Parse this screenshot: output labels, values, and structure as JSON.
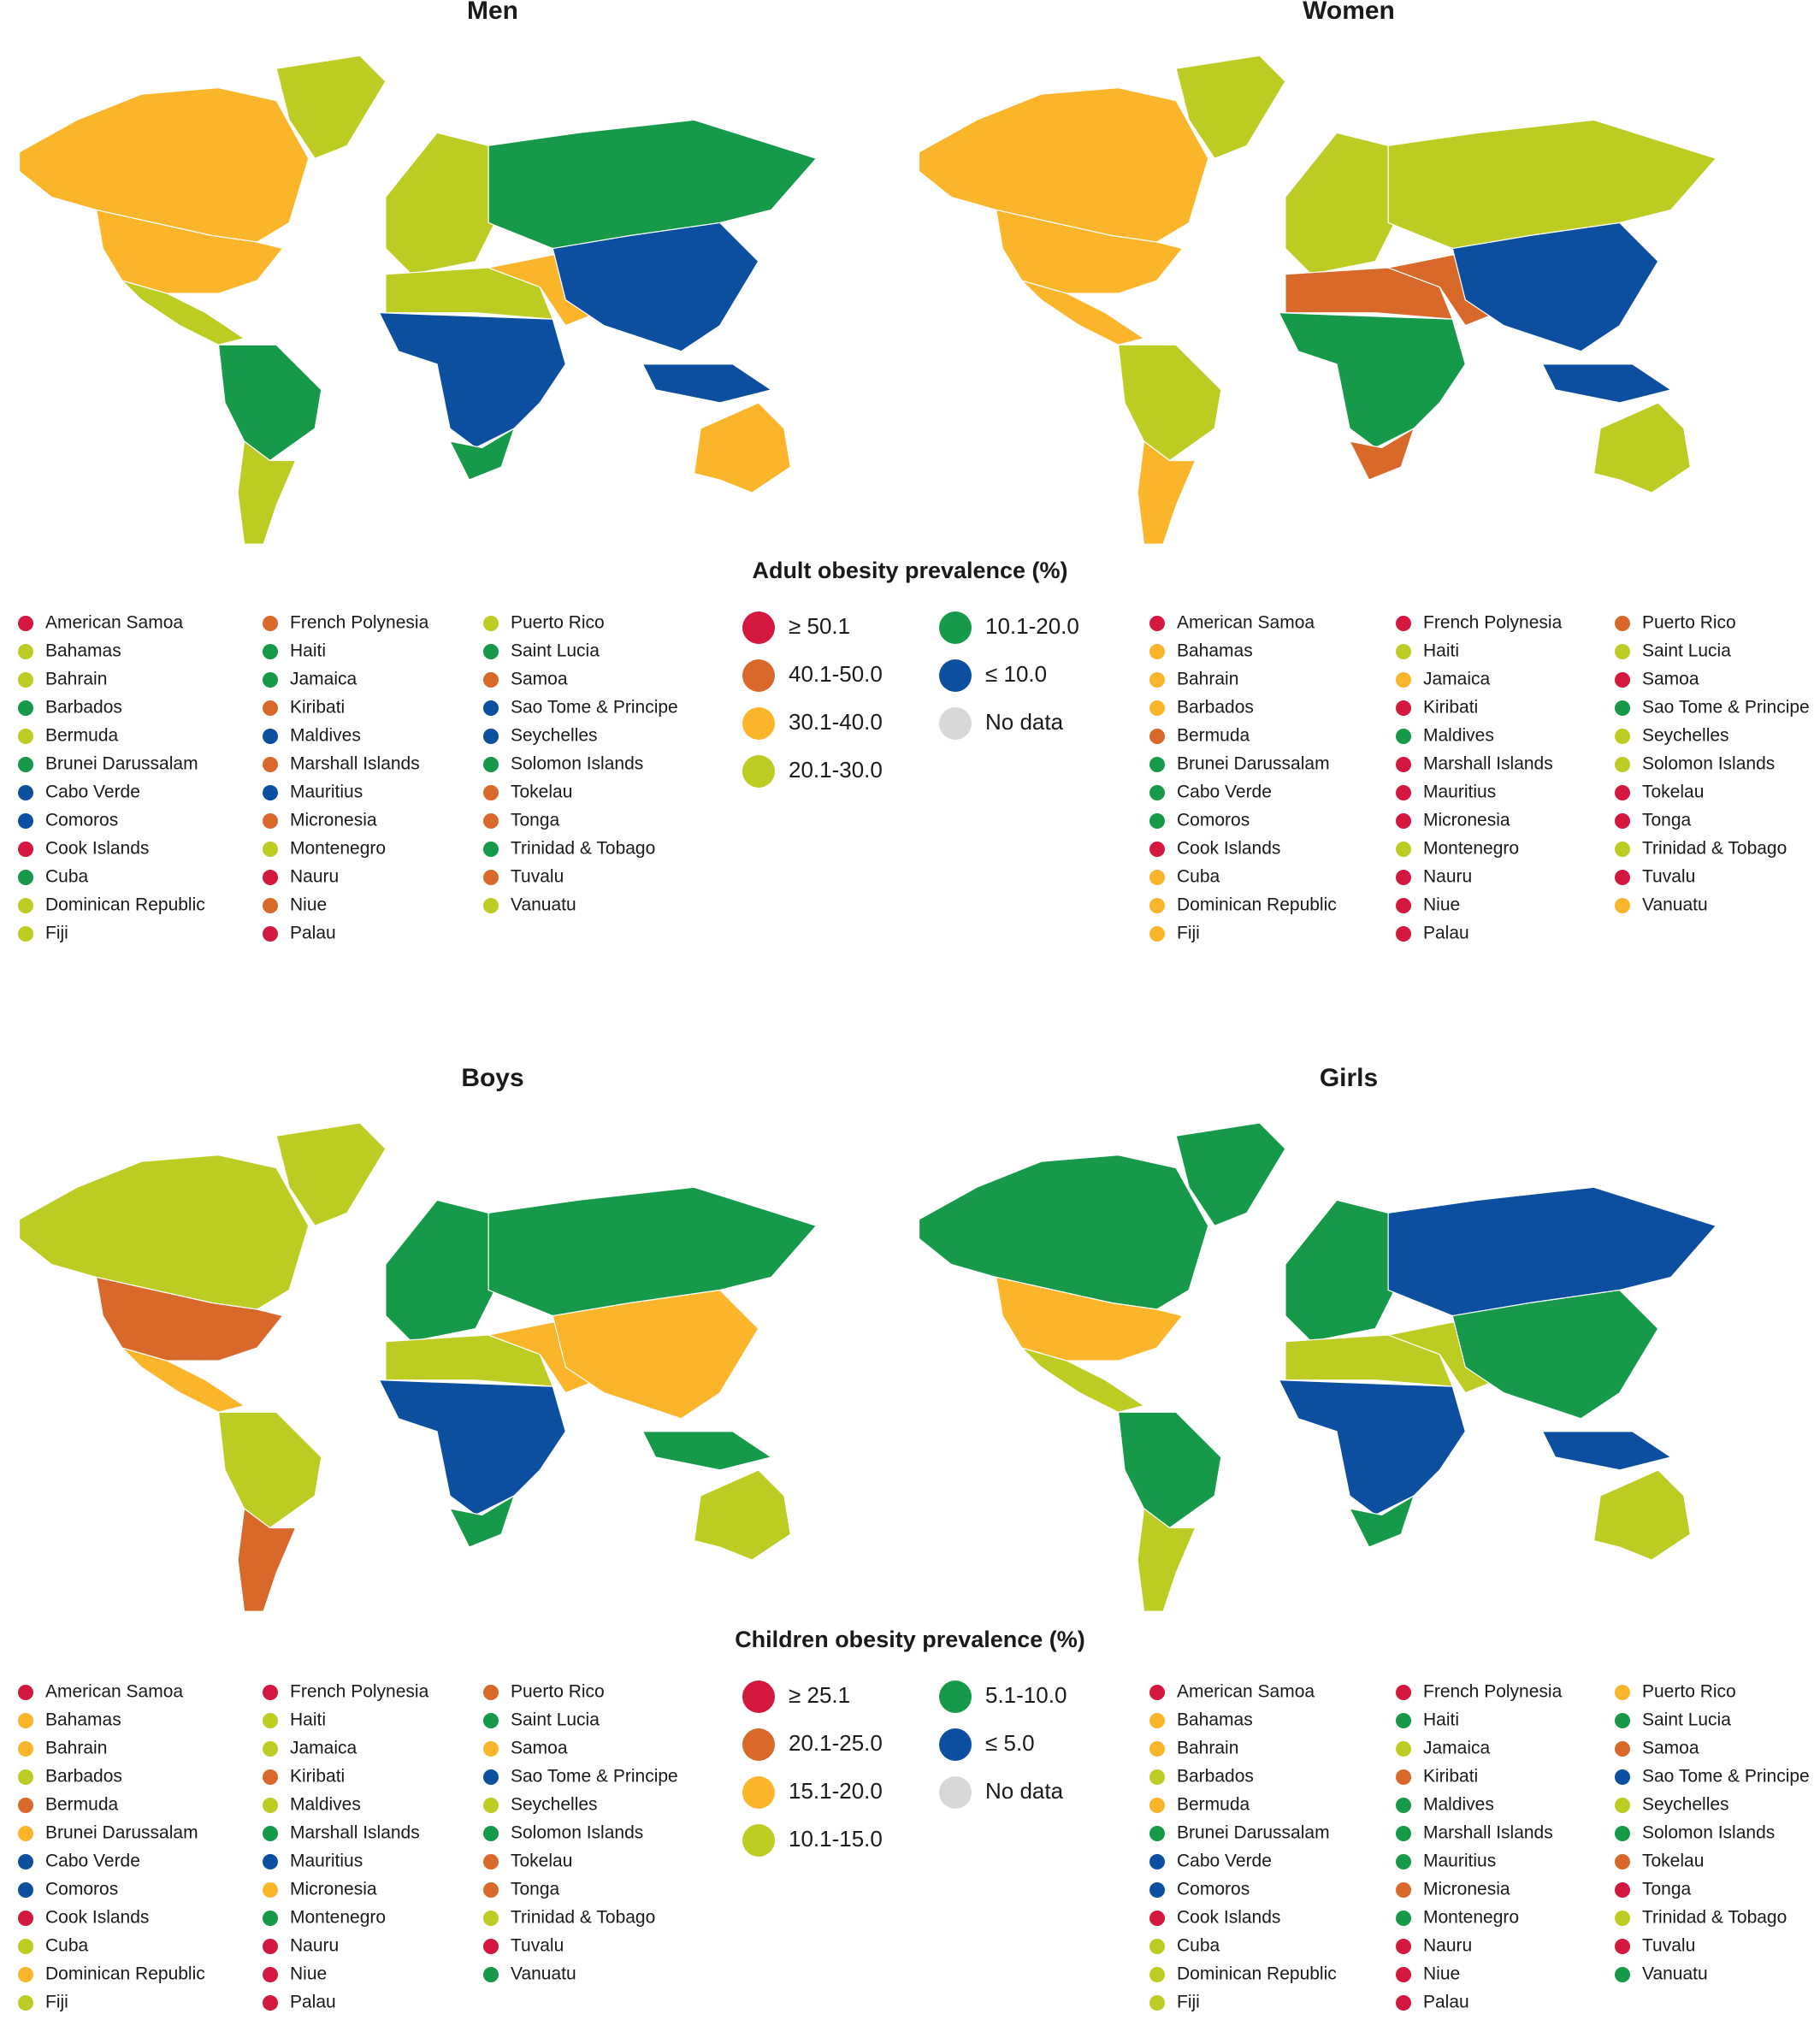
{
  "maps": [
    {
      "title": "Men",
      "region_colors": [
        "#fbb52b",
        "#fbb52b",
        "#bdcc22",
        "#bdcc22",
        "#169a49",
        "#bdcc22",
        "#bdcc22",
        "#169a49",
        "#bdcc22",
        "#0c4fa1",
        "#169a49",
        "#fbb52b",
        "#0c4fa1",
        "#fbb52b",
        "#0c4fa1"
      ]
    },
    {
      "title": "Women",
      "region_colors": [
        "#fbb52b",
        "#fbb52b",
        "#bdcc22",
        "#fbb52b",
        "#bdcc22",
        "#fbb52b",
        "#bdcc22",
        "#bdcc22",
        "#d9692a",
        "#169a49",
        "#d9692a",
        "#d9692a",
        "#0c4fa1",
        "#bdcc22",
        "#0c4fa1"
      ]
    },
    {
      "title": "Boys",
      "region_colors": [
        "#bdcc22",
        "#d9692a",
        "#bdcc22",
        "#fbb52b",
        "#bdcc22",
        "#d9692a",
        "#169a49",
        "#169a49",
        "#bdcc22",
        "#0c4fa1",
        "#169a49",
        "#fbb52b",
        "#fbb52b",
        "#bdcc22",
        "#169a49"
      ]
    },
    {
      "title": "Girls",
      "region_colors": [
        "#169a49",
        "#fbb52b",
        "#169a49",
        "#bdcc22",
        "#169a49",
        "#bdcc22",
        "#169a49",
        "#0c4fa1",
        "#bdcc22",
        "#0c4fa1",
        "#169a49",
        "#bdcc22",
        "#169a49",
        "#bdcc22",
        "#0c4fa1"
      ]
    }
  ],
  "legends": [
    {
      "title": "Adult obesity prevalence (%)",
      "classes": [
        {
          "label": "≥ 50.1",
          "color": "#d3173f"
        },
        {
          "label": "40.1-50.0",
          "color": "#d9692a"
        },
        {
          "label": "30.1-40.0",
          "color": "#fbb52b"
        },
        {
          "label": "20.1-30.0",
          "color": "#bdcc22"
        },
        {
          "label": "10.1-20.0",
          "color": "#169a49"
        },
        {
          "label": "≤ 10.0",
          "color": "#0c4fa1"
        },
        {
          "label": "No data",
          "color": "#d8d8d8"
        }
      ],
      "lists": [
        {
          "items": [
            {
              "name": "American Samoa",
              "color": "#d3173f"
            },
            {
              "name": "Bahamas",
              "color": "#bdcc22"
            },
            {
              "name": "Bahrain",
              "color": "#bdcc22"
            },
            {
              "name": "Barbados",
              "color": "#169a49"
            },
            {
              "name": "Bermuda",
              "color": "#bdcc22"
            },
            {
              "name": "Brunei Darussalam",
              "color": "#169a49"
            },
            {
              "name": "Cabo Verde",
              "color": "#0c4fa1"
            },
            {
              "name": "Comoros",
              "color": "#0c4fa1"
            },
            {
              "name": "Cook Islands",
              "color": "#d3173f"
            },
            {
              "name": "Cuba",
              "color": "#169a49"
            },
            {
              "name": "Dominican Republic",
              "color": "#bdcc22"
            },
            {
              "name": "Fiji",
              "color": "#bdcc22"
            },
            {
              "name": "French Polynesia",
              "color": "#d9692a"
            },
            {
              "name": "Haiti",
              "color": "#169a49"
            },
            {
              "name": "Jamaica",
              "color": "#169a49"
            },
            {
              "name": "Kiribati",
              "color": "#d9692a"
            },
            {
              "name": "Maldives",
              "color": "#0c4fa1"
            },
            {
              "name": "Marshall Islands",
              "color": "#d9692a"
            },
            {
              "name": "Mauritius",
              "color": "#0c4fa1"
            },
            {
              "name": "Micronesia",
              "color": "#d9692a"
            },
            {
              "name": "Montenegro",
              "color": "#bdcc22"
            },
            {
              "name": "Nauru",
              "color": "#d3173f"
            },
            {
              "name": "Niue",
              "color": "#d9692a"
            },
            {
              "name": "Palau",
              "color": "#d3173f"
            },
            {
              "name": "Puerto Rico",
              "color": "#bdcc22"
            },
            {
              "name": "Saint Lucia",
              "color": "#169a49"
            },
            {
              "name": "Samoa",
              "color": "#d9692a"
            },
            {
              "name": "Sao Tome & Principe",
              "color": "#0c4fa1"
            },
            {
              "name": "Seychelles",
              "color": "#0c4fa1"
            },
            {
              "name": "Solomon Islands",
              "color": "#169a49"
            },
            {
              "name": "Tokelau",
              "color": "#d9692a"
            },
            {
              "name": "Tonga",
              "color": "#d9692a"
            },
            {
              "name": "Trinidad & Tobago",
              "color": "#169a49"
            },
            {
              "name": "Tuvalu",
              "color": "#d9692a"
            },
            {
              "name": "Vanuatu",
              "color": "#bdcc22"
            }
          ]
        },
        {
          "items": [
            {
              "name": "American Samoa",
              "color": "#d3173f"
            },
            {
              "name": "Bahamas",
              "color": "#fbb52b"
            },
            {
              "name": "Bahrain",
              "color": "#fbb52b"
            },
            {
              "name": "Barbados",
              "color": "#fbb52b"
            },
            {
              "name": "Bermuda",
              "color": "#d9692a"
            },
            {
              "name": "Brunei Darussalam",
              "color": "#169a49"
            },
            {
              "name": "Cabo Verde",
              "color": "#169a49"
            },
            {
              "name": "Comoros",
              "color": "#169a49"
            },
            {
              "name": "Cook Islands",
              "color": "#d3173f"
            },
            {
              "name": "Cuba",
              "color": "#fbb52b"
            },
            {
              "name": "Dominican Republic",
              "color": "#fbb52b"
            },
            {
              "name": "Fiji",
              "color": "#fbb52b"
            },
            {
              "name": "French Polynesia",
              "color": "#d3173f"
            },
            {
              "name": "Haiti",
              "color": "#bdcc22"
            },
            {
              "name": "Jamaica",
              "color": "#fbb52b"
            },
            {
              "name": "Kiribati",
              "color": "#d3173f"
            },
            {
              "name": "Maldives",
              "color": "#169a49"
            },
            {
              "name": "Marshall Islands",
              "color": "#d3173f"
            },
            {
              "name": "Mauritius",
              "color": "#d3173f"
            },
            {
              "name": "Micronesia",
              "color": "#d3173f"
            },
            {
              "name": "Montenegro",
              "color": "#bdcc22"
            },
            {
              "name": "Nauru",
              "color": "#d3173f"
            },
            {
              "name": "Niue",
              "color": "#d3173f"
            },
            {
              "name": "Palau",
              "color": "#d3173f"
            },
            {
              "name": "Puerto Rico",
              "color": "#d9692a"
            },
            {
              "name": "Saint Lucia",
              "color": "#bdcc22"
            },
            {
              "name": "Samoa",
              "color": "#d3173f"
            },
            {
              "name": "Sao Tome & Principe",
              "color": "#169a49"
            },
            {
              "name": "Seychelles",
              "color": "#bdcc22"
            },
            {
              "name": "Solomon Islands",
              "color": "#bdcc22"
            },
            {
              "name": "Tokelau",
              "color": "#d3173f"
            },
            {
              "name": "Tonga",
              "color": "#d3173f"
            },
            {
              "name": "Trinidad & Tobago",
              "color": "#bdcc22"
            },
            {
              "name": "Tuvalu",
              "color": "#d3173f"
            },
            {
              "name": "Vanuatu",
              "color": "#fbb52b"
            }
          ]
        }
      ]
    },
    {
      "title": "Children obesity prevalence (%)",
      "classes": [
        {
          "label": "≥ 25.1",
          "color": "#d3173f"
        },
        {
          "label": "20.1-25.0",
          "color": "#d9692a"
        },
        {
          "label": "15.1-20.0",
          "color": "#fbb52b"
        },
        {
          "label": "10.1-15.0",
          "color": "#bdcc22"
        },
        {
          "label": "5.1-10.0",
          "color": "#169a49"
        },
        {
          "label": "≤ 5.0",
          "color": "#0c4fa1"
        },
        {
          "label": "No data",
          "color": "#d8d8d8"
        }
      ],
      "lists": [
        {
          "items": [
            {
              "name": "American Samoa",
              "color": "#d3173f"
            },
            {
              "name": "Bahamas",
              "color": "#fbb52b"
            },
            {
              "name": "Bahrain",
              "color": "#fbb52b"
            },
            {
              "name": "Barbados",
              "color": "#bdcc22"
            },
            {
              "name": "Bermuda",
              "color": "#d9692a"
            },
            {
              "name": "Brunei Darussalam",
              "color": "#fbb52b"
            },
            {
              "name": "Cabo Verde",
              "color": "#0c4fa1"
            },
            {
              "name": "Comoros",
              "color": "#0c4fa1"
            },
            {
              "name": "Cook Islands",
              "color": "#d3173f"
            },
            {
              "name": "Cuba",
              "color": "#bdcc22"
            },
            {
              "name": "Dominican Republic",
              "color": "#fbb52b"
            },
            {
              "name": "Fiji",
              "color": "#bdcc22"
            },
            {
              "name": "French Polynesia",
              "color": "#d3173f"
            },
            {
              "name": "Haiti",
              "color": "#bdcc22"
            },
            {
              "name": "Jamaica",
              "color": "#bdcc22"
            },
            {
              "name": "Kiribati",
              "color": "#d9692a"
            },
            {
              "name": "Maldives",
              "color": "#bdcc22"
            },
            {
              "name": "Marshall Islands",
              "color": "#169a49"
            },
            {
              "name": "Mauritius",
              "color": "#0c4fa1"
            },
            {
              "name": "Micronesia",
              "color": "#fbb52b"
            },
            {
              "name": "Montenegro",
              "color": "#169a49"
            },
            {
              "name": "Nauru",
              "color": "#d3173f"
            },
            {
              "name": "Niue",
              "color": "#d3173f"
            },
            {
              "name": "Palau",
              "color": "#d3173f"
            },
            {
              "name": "Puerto Rico",
              "color": "#d9692a"
            },
            {
              "name": "Saint Lucia",
              "color": "#169a49"
            },
            {
              "name": "Samoa",
              "color": "#fbb52b"
            },
            {
              "name": "Sao Tome & Principe",
              "color": "#0c4fa1"
            },
            {
              "name": "Seychelles",
              "color": "#bdcc22"
            },
            {
              "name": "Solomon Islands",
              "color": "#169a49"
            },
            {
              "name": "Tokelau",
              "color": "#d9692a"
            },
            {
              "name": "Tonga",
              "color": "#d9692a"
            },
            {
              "name": "Trinidad & Tobago",
              "color": "#bdcc22"
            },
            {
              "name": "Tuvalu",
              "color": "#d3173f"
            },
            {
              "name": "Vanuatu",
              "color": "#169a49"
            }
          ]
        },
        {
          "items": [
            {
              "name": "American Samoa",
              "color": "#d3173f"
            },
            {
              "name": "Bahamas",
              "color": "#fbb52b"
            },
            {
              "name": "Bahrain",
              "color": "#fbb52b"
            },
            {
              "name": "Barbados",
              "color": "#bdcc22"
            },
            {
              "name": "Bermuda",
              "color": "#fbb52b"
            },
            {
              "name": "Brunei Darussalam",
              "color": "#169a49"
            },
            {
              "name": "Cabo Verde",
              "color": "#0c4fa1"
            },
            {
              "name": "Comoros",
              "color": "#0c4fa1"
            },
            {
              "name": "Cook Islands",
              "color": "#d3173f"
            },
            {
              "name": "Cuba",
              "color": "#bdcc22"
            },
            {
              "name": "Dominican Republic",
              "color": "#bdcc22"
            },
            {
              "name": "Fiji",
              "color": "#bdcc22"
            },
            {
              "name": "French Polynesia",
              "color": "#d3173f"
            },
            {
              "name": "Haiti",
              "color": "#169a49"
            },
            {
              "name": "Jamaica",
              "color": "#bdcc22"
            },
            {
              "name": "Kiribati",
              "color": "#d9692a"
            },
            {
              "name": "Maldives",
              "color": "#169a49"
            },
            {
              "name": "Marshall Islands",
              "color": "#169a49"
            },
            {
              "name": "Mauritius",
              "color": "#169a49"
            },
            {
              "name": "Micronesia",
              "color": "#d9692a"
            },
            {
              "name": "Montenegro",
              "color": "#169a49"
            },
            {
              "name": "Nauru",
              "color": "#d3173f"
            },
            {
              "name": "Niue",
              "color": "#d3173f"
            },
            {
              "name": "Palau",
              "color": "#d3173f"
            },
            {
              "name": "Puerto Rico",
              "color": "#fbb52b"
            },
            {
              "name": "Saint Lucia",
              "color": "#169a49"
            },
            {
              "name": "Samoa",
              "color": "#d9692a"
            },
            {
              "name": "Sao Tome & Principe",
              "color": "#0c4fa1"
            },
            {
              "name": "Seychelles",
              "color": "#bdcc22"
            },
            {
              "name": "Solomon Islands",
              "color": "#169a49"
            },
            {
              "name": "Tokelau",
              "color": "#d9692a"
            },
            {
              "name": "Tonga",
              "color": "#d3173f"
            },
            {
              "name": "Trinidad & Tobago",
              "color": "#bdcc22"
            },
            {
              "name": "Tuvalu",
              "color": "#d3173f"
            },
            {
              "name": "Vanuatu",
              "color": "#169a49"
            }
          ]
        }
      ]
    }
  ]
}
